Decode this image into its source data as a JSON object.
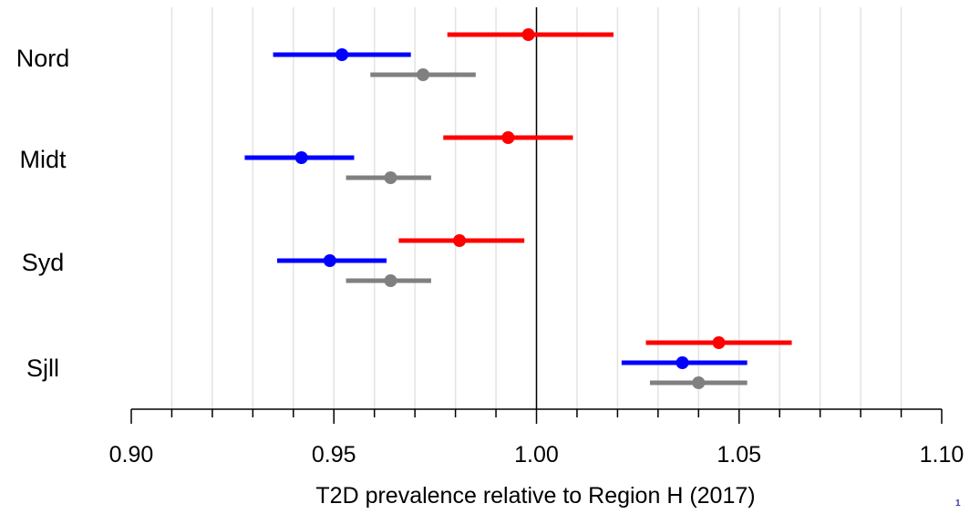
{
  "chart_data": {
    "type": "forest",
    "xlabel": "T2D prevalence relative to Region H (2017)",
    "xlim": [
      0.9,
      1.1
    ],
    "major_ticks": [
      "0.90",
      "0.95",
      "1.00",
      "1.05",
      "1.10"
    ],
    "reference_line": 1.0,
    "grid": "vertical-minor",
    "categories": [
      "Nord",
      "Midt",
      "Syd",
      "Sjll"
    ],
    "series": [
      {
        "color": "#ff0000",
        "points": [
          {
            "est": 0.998,
            "lo": 0.978,
            "hi": 1.019
          },
          {
            "est": 0.993,
            "lo": 0.977,
            "hi": 1.009
          },
          {
            "est": 0.981,
            "lo": 0.966,
            "hi": 0.997
          },
          {
            "est": 1.045,
            "lo": 1.027,
            "hi": 1.063
          }
        ]
      },
      {
        "color": "#0000ff",
        "points": [
          {
            "est": 0.952,
            "lo": 0.935,
            "hi": 0.969
          },
          {
            "est": 0.942,
            "lo": 0.928,
            "hi": 0.955
          },
          {
            "est": 0.949,
            "lo": 0.936,
            "hi": 0.963
          },
          {
            "est": 1.036,
            "lo": 1.021,
            "hi": 1.052
          }
        ]
      },
      {
        "color": "#808080",
        "points": [
          {
            "est": 0.972,
            "lo": 0.959,
            "hi": 0.985
          },
          {
            "est": 0.964,
            "lo": 0.953,
            "hi": 0.974
          },
          {
            "est": 0.964,
            "lo": 0.953,
            "hi": 0.974
          },
          {
            "est": 1.04,
            "lo": 1.028,
            "hi": 1.052
          }
        ]
      }
    ]
  },
  "page_number": "1"
}
